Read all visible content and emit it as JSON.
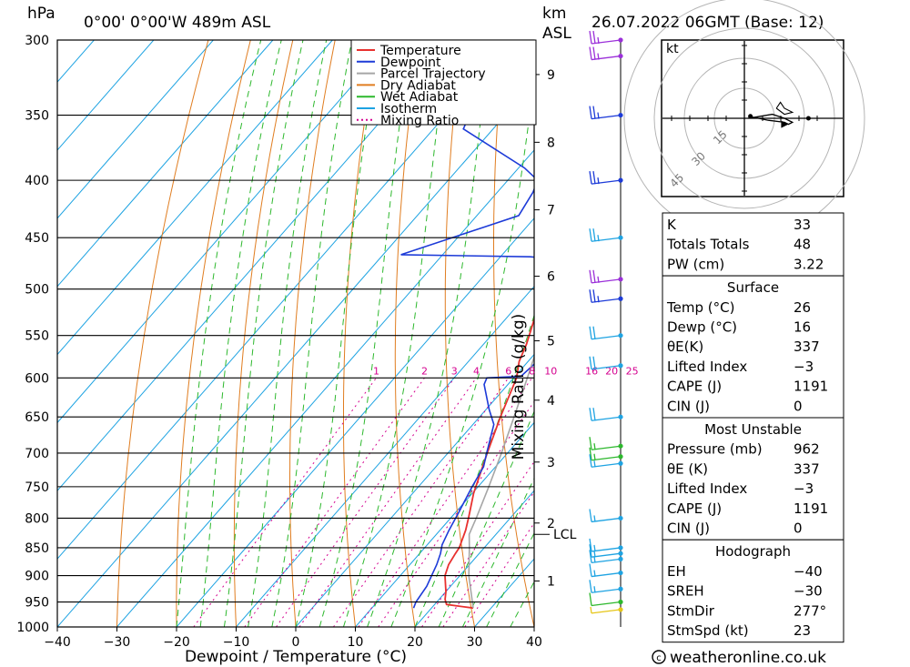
{
  "chart_data": {
    "type": "line",
    "header": {
      "pressure_unit": "hPa",
      "location": "0°00' 0°00'W 489m ASL",
      "km_unit": "km",
      "asl_label": "ASL",
      "datetime": "26.07.2022 06GMT (Base: 12)"
    },
    "xlabel": "Dewpoint / Temperature (°C)",
    "mixing_ratio_label": "Mixing Ratio (g/kg)",
    "x_ticks": [
      -40,
      -30,
      -20,
      -10,
      0,
      10,
      20,
      30,
      40
    ],
    "pressure_levels": [
      300,
      350,
      400,
      450,
      500,
      550,
      600,
      650,
      700,
      750,
      800,
      850,
      900,
      950,
      1000
    ],
    "km_ticks": [
      {
        "label": "1",
        "p": 910
      },
      {
        "label": "2",
        "p": 808
      },
      {
        "label": "3",
        "p": 713
      },
      {
        "label": "4",
        "p": 628
      },
      {
        "label": "5",
        "p": 556
      },
      {
        "label": "6",
        "p": 487
      },
      {
        "label": "7",
        "p": 425
      },
      {
        "label": "8",
        "p": 370
      },
      {
        "label": "9",
        "p": 322
      }
    ],
    "lcl": {
      "label": "LCL",
      "p": 827
    },
    "mixing_ratio_labels": [
      "1",
      "2",
      "3",
      "4",
      "6",
      "8",
      "10",
      "16",
      "20",
      "25"
    ],
    "legend": [
      {
        "name": "Temperature",
        "color": "#e8312f",
        "dash": "solid"
      },
      {
        "name": "Dewpoint",
        "color": "#1d3bd8",
        "dash": "solid"
      },
      {
        "name": "Parcel Trajectory",
        "color": "#a6a6a6",
        "dash": "solid"
      },
      {
        "name": "Dry Adiabat",
        "color": "#e07d20",
        "dash": "solid"
      },
      {
        "name": "Wet Adiabat",
        "color": "#2db82d",
        "dash": "solid"
      },
      {
        "name": "Isotherm",
        "color": "#1ea3e2",
        "dash": "solid"
      },
      {
        "name": "Mixing Ratio",
        "color": "#d4008f",
        "dash": "dotted"
      }
    ],
    "series": [
      {
        "name": "Temperature",
        "points": [
          [
            962,
            27
          ],
          [
            955,
            22
          ],
          [
            945,
            21
          ],
          [
            930,
            20
          ],
          [
            900,
            17.5
          ],
          [
            880,
            16.5
          ],
          [
            860,
            16
          ],
          [
            850,
            15.8
          ],
          [
            820,
            14.3
          ],
          [
            800,
            13
          ],
          [
            760,
            10.2
          ],
          [
            700,
            6.6
          ],
          [
            650,
            3.5
          ],
          [
            600,
            0.5
          ],
          [
            580,
            -1.5
          ],
          [
            560,
            -2.8
          ],
          [
            520,
            -6.2
          ],
          [
            500,
            -8.8
          ],
          [
            482,
            -10.8
          ],
          [
            470,
            -11
          ],
          [
            462,
            -12.5
          ],
          [
            450,
            -13
          ],
          [
            420,
            -16
          ],
          [
            400,
            -19
          ],
          [
            380,
            -23
          ],
          [
            350,
            -29.5
          ],
          [
            320,
            -37
          ],
          [
            300,
            -43
          ]
        ]
      },
      {
        "name": "Dewpoint",
        "points": [
          [
            962,
            17
          ],
          [
            950,
            16.5
          ],
          [
            920,
            16
          ],
          [
            880,
            14.5
          ],
          [
            860,
            13.5
          ],
          [
            845,
            12.5
          ],
          [
            820,
            11.5
          ],
          [
            790,
            10.5
          ],
          [
            750,
            9
          ],
          [
            720,
            8
          ],
          [
            700,
            6.5
          ],
          [
            660,
            3.5
          ],
          [
            640,
            0.5
          ],
          [
            608,
            -4
          ],
          [
            600,
            -4.5
          ],
          [
            598,
            1
          ],
          [
            580,
            1.5
          ],
          [
            560,
            1
          ],
          [
            540,
            0
          ],
          [
            520,
            -3
          ],
          [
            500,
            -5
          ],
          [
            485,
            -8.5
          ],
          [
            480,
            -10.5
          ],
          [
            470,
            -10.5
          ],
          [
            468,
            -15
          ],
          [
            466,
            -37
          ],
          [
            440,
            -27
          ],
          [
            430,
            -23
          ],
          [
            410,
            -24
          ],
          [
            400,
            -25
          ],
          [
            390,
            -29
          ],
          [
            360,
            -45
          ],
          [
            350,
            -46
          ],
          [
            330,
            -49
          ],
          [
            315,
            -51
          ],
          [
            300,
            -53
          ]
        ]
      },
      {
        "name": "Parcel Trajectory",
        "points": [
          [
            962,
            27
          ],
          [
            900,
            21.5
          ],
          [
            850,
            17.5
          ],
          [
            827,
            15.5
          ],
          [
            800,
            14.3
          ],
          [
            750,
            11.8
          ],
          [
            700,
            9
          ],
          [
            650,
            5.8
          ],
          [
            600,
            2.3
          ],
          [
            550,
            -1.6
          ],
          [
            500,
            -6
          ],
          [
            450,
            -11
          ],
          [
            400,
            -17.2
          ],
          [
            350,
            -25
          ],
          [
            300,
            -34
          ]
        ]
      }
    ],
    "winds": [
      {
        "p": 300,
        "speed": 25,
        "color": "#9b30d9"
      },
      {
        "p": 310,
        "speed": 25,
        "color": "#9b30d9"
      },
      {
        "p": 350,
        "speed": 25,
        "color": "#1d3bd8"
      },
      {
        "p": 400,
        "speed": 25,
        "color": "#1d3bd8"
      },
      {
        "p": 450,
        "speed": 25,
        "color": "#1ea3e2"
      },
      {
        "p": 490,
        "speed": 25,
        "color": "#9b30d9"
      },
      {
        "p": 510,
        "speed": 25,
        "color": "#1d3bd8"
      },
      {
        "p": 550,
        "speed": 20,
        "color": "#1ea3e2"
      },
      {
        "p": 585,
        "speed": 20,
        "color": "#1ea3e2"
      },
      {
        "p": 650,
        "speed": 20,
        "color": "#1ea3e2"
      },
      {
        "p": 690,
        "speed": 15,
        "color": "#2db82d"
      },
      {
        "p": 705,
        "speed": 15,
        "color": "#2db82d"
      },
      {
        "p": 715,
        "speed": 15,
        "color": "#1ea3e2"
      },
      {
        "p": 800,
        "speed": 15,
        "color": "#1ea3e2"
      },
      {
        "p": 850,
        "speed": 15,
        "color": "#1ea3e2"
      },
      {
        "p": 860,
        "speed": 15,
        "color": "#1ea3e2"
      },
      {
        "p": 870,
        "speed": 15,
        "color": "#1ea3e2"
      },
      {
        "p": 895,
        "speed": 15,
        "color": "#1ea3e2"
      },
      {
        "p": 925,
        "speed": 15,
        "color": "#1ea3e2"
      },
      {
        "p": 950,
        "speed": 10,
        "color": "#2db82d"
      },
      {
        "p": 965,
        "speed": 5,
        "color": "#e6c619"
      }
    ],
    "hodograph": {
      "unit": "kt",
      "rings": [
        "15",
        "30",
        "45"
      ],
      "trace": [
        [
          2,
          1
        ],
        [
          12,
          -1
        ],
        [
          20,
          -2
        ],
        [
          22,
          -3
        ],
        [
          24,
          -2
        ],
        [
          20,
          0
        ],
        [
          14,
          2
        ],
        [
          8,
          1
        ],
        [
          2,
          0
        ]
      ],
      "trace2": [
        [
          16,
          5
        ],
        [
          18,
          8
        ],
        [
          20,
          5
        ],
        [
          24,
          3
        ],
        [
          20,
          2
        ],
        [
          16,
          5
        ]
      ],
      "storm_motion": [
        [
          22,
          -3
        ]
      ]
    },
    "tables": [
      {
        "title": "",
        "rows": [
          {
            "label": "K",
            "value": "33"
          },
          {
            "label": "Totals Totals",
            "value": "48"
          },
          {
            "label": "PW (cm)",
            "value": "3.22"
          }
        ]
      },
      {
        "title": "Surface",
        "rows": [
          {
            "label": "Temp (°C)",
            "value": "26"
          },
          {
            "label": "Dewp (°C)",
            "value": "16"
          },
          {
            "label": "θE(K)",
            "value": "337"
          },
          {
            "label": "Lifted Index",
            "value": "-3"
          },
          {
            "label": "CAPE (J)",
            "value": "1191"
          },
          {
            "label": "CIN (J)",
            "value": "0"
          }
        ]
      },
      {
        "title": "Most Unstable",
        "rows": [
          {
            "label": "Pressure (mb)",
            "value": "962"
          },
          {
            "label": "θE (K)",
            "value": "337"
          },
          {
            "label": "Lifted Index",
            "value": "-3"
          },
          {
            "label": "CAPE (J)",
            "value": "1191"
          },
          {
            "label": "CIN (J)",
            "value": "0"
          }
        ]
      },
      {
        "title": "Hodograph",
        "rows": [
          {
            "label": "EH",
            "value": "-40"
          },
          {
            "label": "SREH",
            "value": "-30"
          },
          {
            "label": "StmDir",
            "value": "277°"
          },
          {
            "label": "StmSpd (kt)",
            "value": "23"
          }
        ]
      }
    ],
    "copyright": "weatheronline.co.uk"
  }
}
